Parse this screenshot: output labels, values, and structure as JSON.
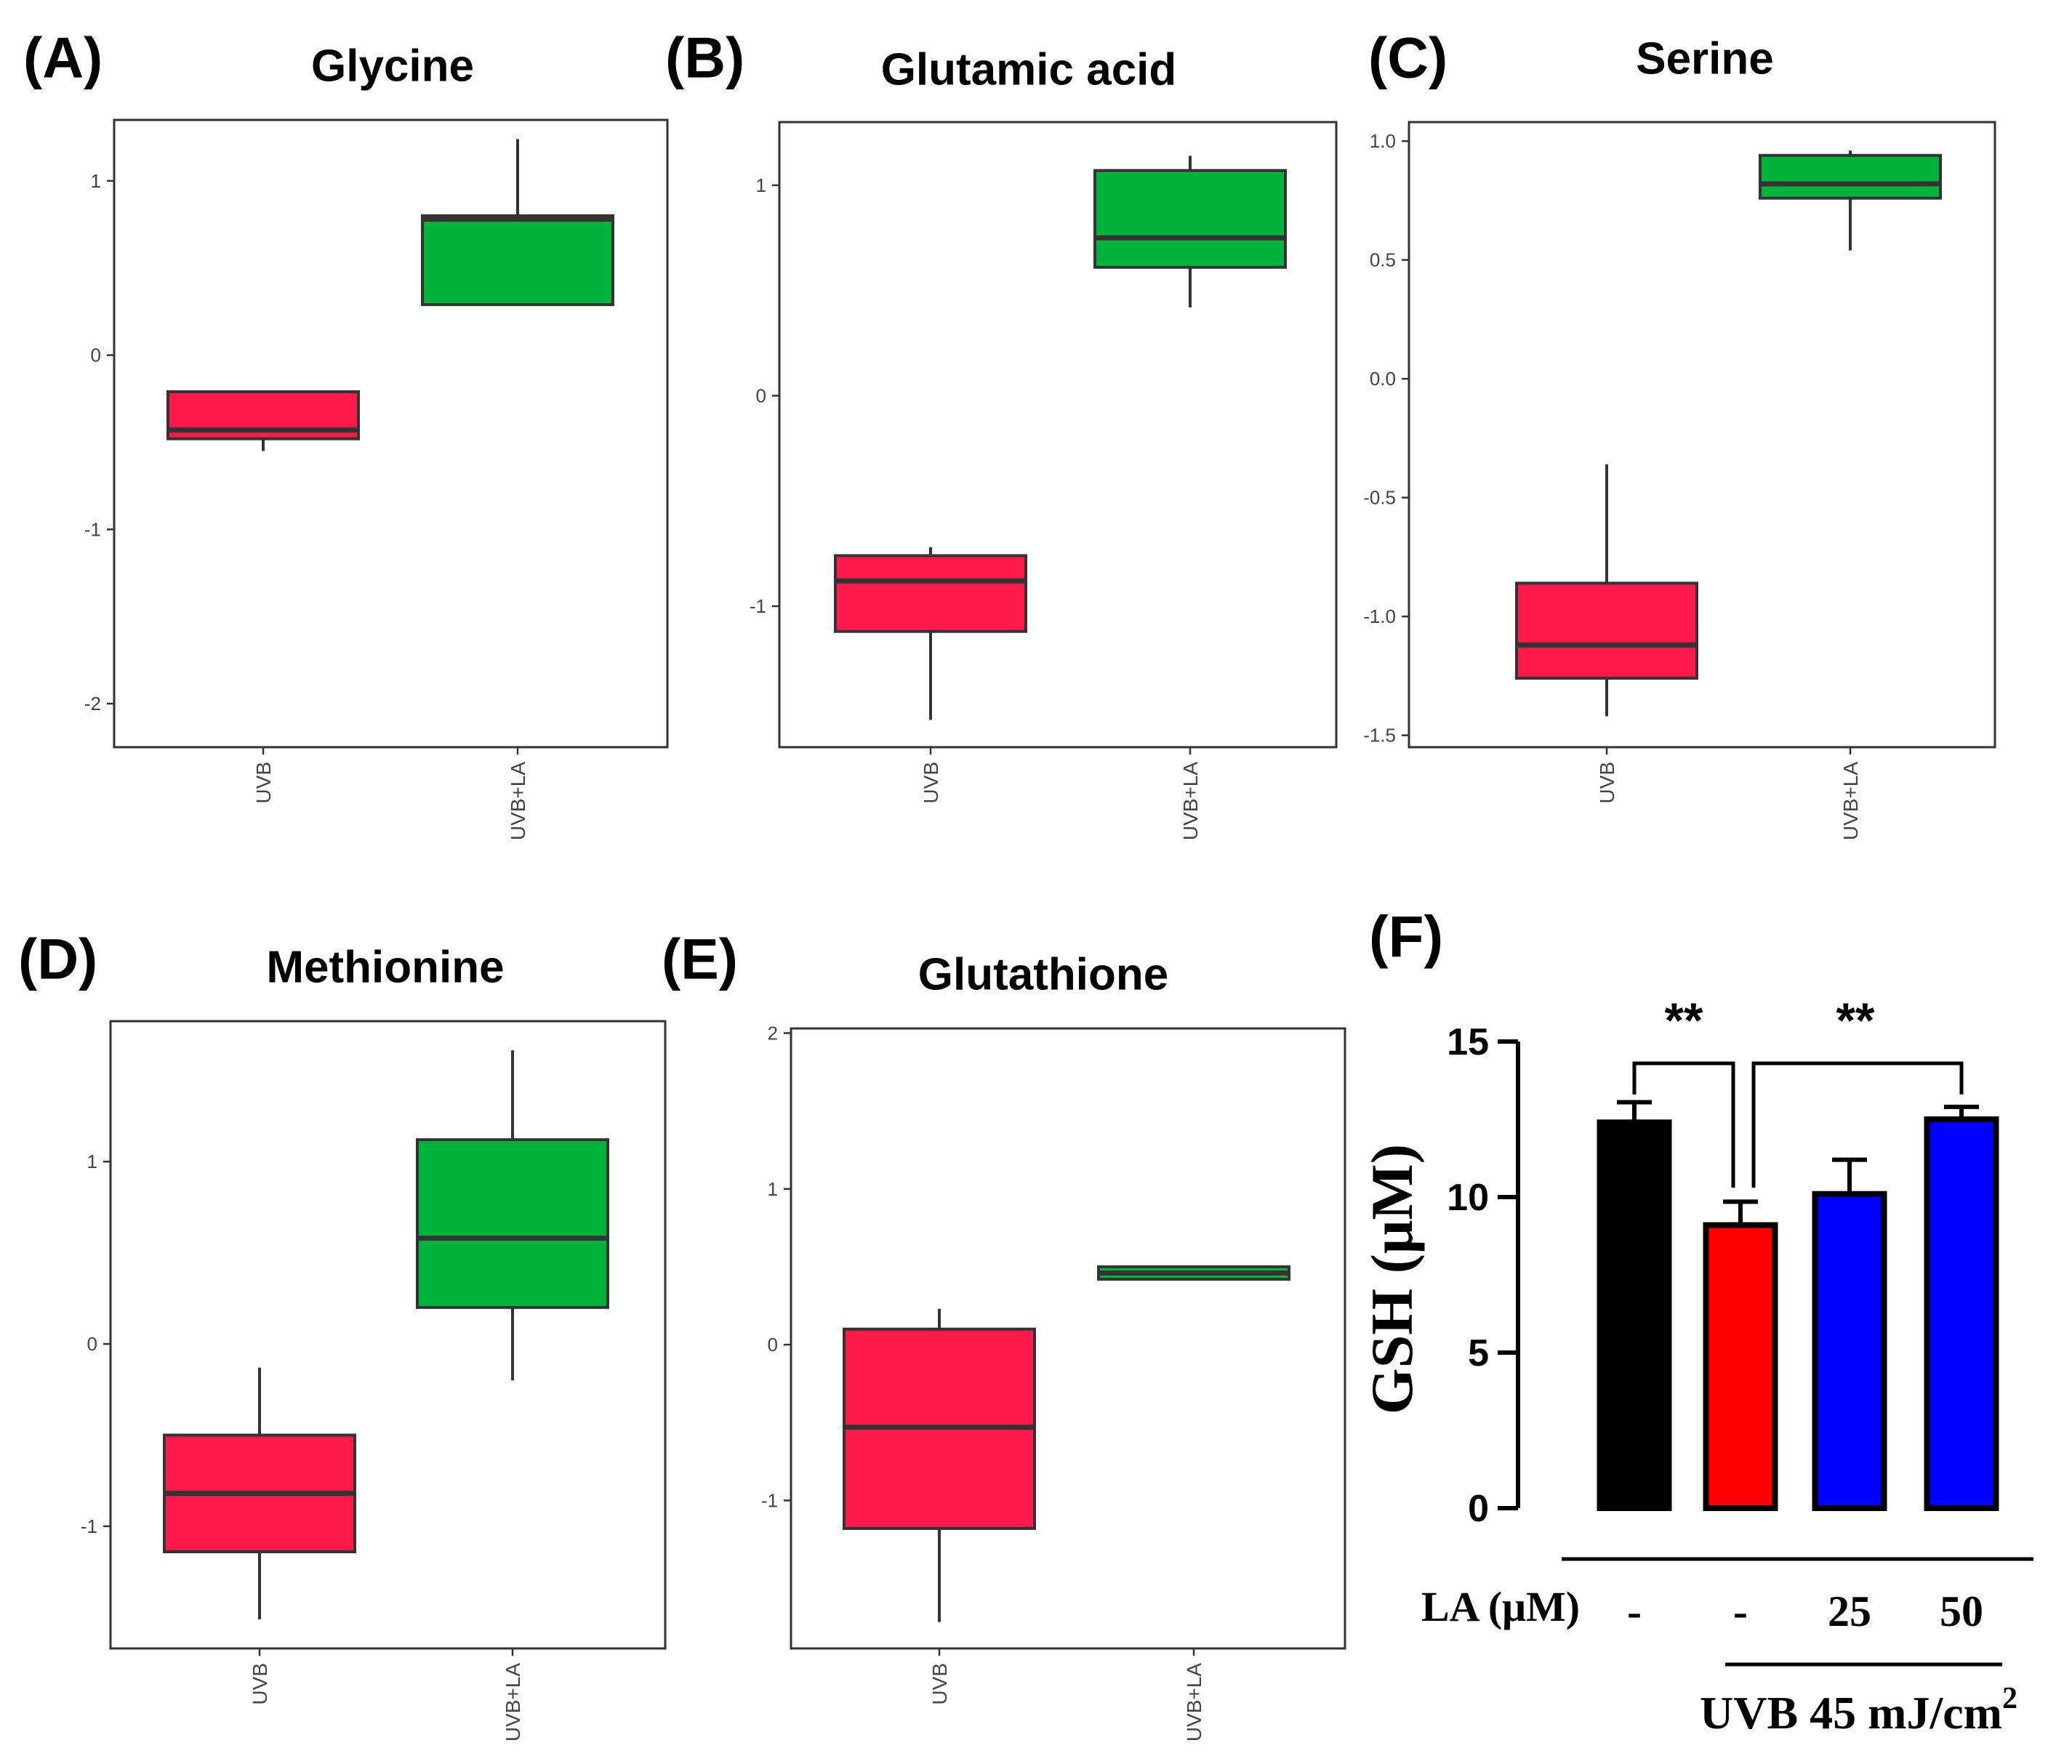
{
  "colors": {
    "uvb": "#ff1a4b",
    "uvb_la": "#00b33c",
    "black": "#000000",
    "red": "#ff0000",
    "blue": "#0000ff",
    "median": "#333333"
  },
  "chart_data": [
    {
      "type": "boxplot",
      "panel": "(A)",
      "title": "Glycine",
      "categories": [
        "UVB",
        "UVB+LA"
      ],
      "ylim": [
        -2.25,
        1.35
      ],
      "yticks": [
        1,
        0,
        -1,
        -2
      ],
      "ytick_labels": [
        "1",
        "0",
        "-1",
        "-2"
      ],
      "boxes": [
        {
          "min": -0.55,
          "q1": -0.48,
          "median": -0.43,
          "q3": -0.21,
          "max": -0.21
        },
        {
          "min": 0.29,
          "q1": 0.29,
          "median": 0.78,
          "q3": 0.8,
          "max": 1.24
        }
      ]
    },
    {
      "type": "boxplot",
      "panel": "(B)",
      "title": "Glutamic acid",
      "categories": [
        "UVB",
        "UVB+LA"
      ],
      "ylim": [
        -1.67,
        1.3
      ],
      "yticks": [
        1,
        0,
        -1
      ],
      "ytick_labels": [
        "1",
        "0",
        "-1"
      ],
      "boxes": [
        {
          "min": -1.54,
          "q1": -1.12,
          "median": -0.88,
          "q3": -0.76,
          "max": -0.72
        },
        {
          "min": 0.42,
          "q1": 0.61,
          "median": 0.75,
          "q3": 1.07,
          "max": 1.14
        }
      ]
    },
    {
      "type": "boxplot",
      "panel": "(C)",
      "title": "Serine",
      "categories": [
        "UVB",
        "UVB+LA"
      ],
      "ylim": [
        -1.55,
        1.08
      ],
      "yticks": [
        1,
        0.5,
        0,
        -0.5,
        -1,
        -1.5
      ],
      "ytick_labels": [
        "1.0",
        "0.5",
        "0.0",
        "-0.5",
        "-1.0",
        "-1.5"
      ],
      "boxes": [
        {
          "min": -1.42,
          "q1": -1.26,
          "median": -1.12,
          "q3": -0.86,
          "max": -0.36
        },
        {
          "min": 0.54,
          "q1": 0.76,
          "median": 0.82,
          "q3": 0.94,
          "max": 0.96
        }
      ]
    },
    {
      "type": "boxplot",
      "panel": "(D)",
      "title": "Methionine",
      "categories": [
        "UVB",
        "UVB+LA"
      ],
      "ylim": [
        -1.67,
        1.77
      ],
      "yticks": [
        1,
        0,
        -1
      ],
      "ytick_labels": [
        "1",
        "0",
        "-1"
      ],
      "boxes": [
        {
          "min": -1.51,
          "q1": -1.14,
          "median": -0.82,
          "q3": -0.5,
          "max": -0.13
        },
        {
          "min": -0.2,
          "q1": 0.2,
          "median": 0.58,
          "q3": 1.12,
          "max": 1.61
        }
      ]
    },
    {
      "type": "boxplot",
      "panel": "(E)",
      "title": "Glutathione",
      "categories": [
        "UVB",
        "UVB+LA"
      ],
      "ylim": [
        -1.95,
        2.03
      ],
      "yticks": [
        2,
        1,
        0,
        -1
      ],
      "ytick_labels": [
        "2",
        "1",
        "0",
        "-1"
      ],
      "boxes": [
        {
          "min": -1.78,
          "q1": -1.18,
          "median": -0.53,
          "q3": 0.1,
          "max": 0.23
        },
        {
          "min": 0.42,
          "q1": 0.42,
          "median": 0.46,
          "q3": 0.5,
          "max": 0.5
        }
      ]
    },
    {
      "type": "bar",
      "panel": "(F)",
      "ylabel": "GSH (μM)",
      "ylim": [
        0,
        15
      ],
      "yticks": [
        0,
        5,
        10,
        15
      ],
      "ytick_labels": [
        "0",
        "5",
        "10",
        "15"
      ],
      "categories": [
        "-",
        "-",
        "25",
        "50"
      ],
      "values": [
        12.4,
        9.1,
        10.1,
        12.5
      ],
      "errors": [
        0.65,
        0.75,
        1.1,
        0.4
      ],
      "row_label": "LA (μM)",
      "group_label": "UVB 45 mJ/cm",
      "group_label_sup": "2",
      "significance": [
        "**",
        "**"
      ]
    }
  ]
}
